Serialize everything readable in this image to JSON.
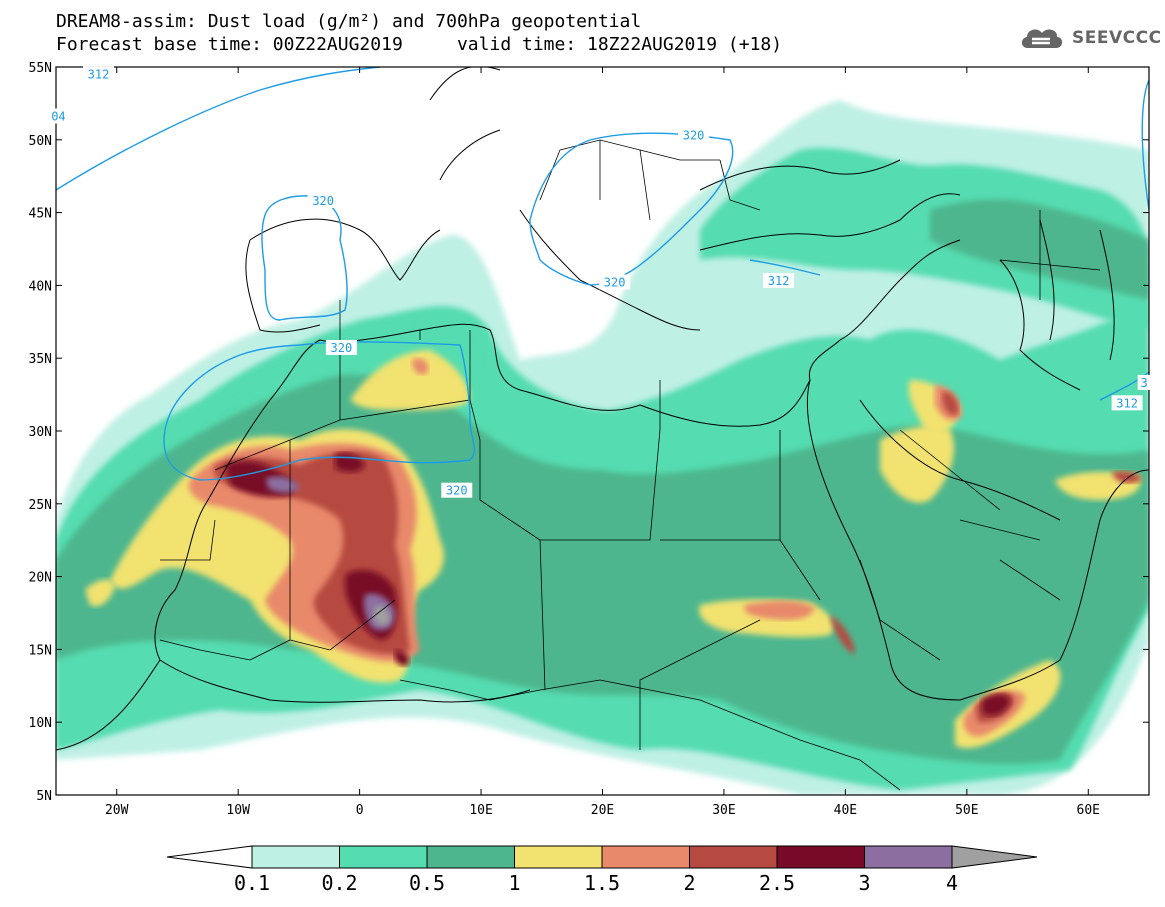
{
  "title_line1": "DREAM8-assim: Dust load (g/m²) and 700hPa geopotential",
  "title_line2": "Forecast base time: 00Z22AUG2019     valid time: 18Z22AUG2019 (+18)",
  "logo_text": "SEEVCCC",
  "map": {
    "lon_range": [
      -25,
      65
    ],
    "lat_range": [
      5,
      55
    ],
    "lon_ticks": [
      {
        "value": -20,
        "label": "20W"
      },
      {
        "value": -10,
        "label": "10W"
      },
      {
        "value": 0,
        "label": "0"
      },
      {
        "value": 10,
        "label": "10E"
      },
      {
        "value": 20,
        "label": "20E"
      },
      {
        "value": 30,
        "label": "30E"
      },
      {
        "value": 40,
        "label": "40E"
      },
      {
        "value": 50,
        "label": "50E"
      },
      {
        "value": 60,
        "label": "60E"
      }
    ],
    "lat_ticks": [
      {
        "value": 55,
        "label": "55N"
      },
      {
        "value": 50,
        "label": "50N"
      },
      {
        "value": 45,
        "label": "45N"
      },
      {
        "value": 40,
        "label": "40N"
      },
      {
        "value": 35,
        "label": "35N"
      },
      {
        "value": 30,
        "label": "30N"
      },
      {
        "value": 25,
        "label": "25N"
      },
      {
        "value": 20,
        "label": "20N"
      },
      {
        "value": 15,
        "label": "15N"
      },
      {
        "value": 10,
        "label": "10N"
      },
      {
        "value": 5,
        "label": "5N"
      }
    ],
    "contour_labels": [
      {
        "text": "312",
        "lon": -21.5,
        "lat": 54.5
      },
      {
        "text": "320",
        "lon": -3,
        "lat": 45.8
      },
      {
        "text": "320",
        "lon": 27.5,
        "lat": 50.3
      },
      {
        "text": "320",
        "lon": 21,
        "lat": 40.2
      },
      {
        "text": "312",
        "lon": 34.5,
        "lat": 40.3
      },
      {
        "text": "320",
        "lon": -1.5,
        "lat": 35.7
      },
      {
        "text": "320",
        "lon": 8,
        "lat": 25.9
      },
      {
        "text": "312",
        "lon": 63.2,
        "lat": 31.9
      },
      {
        "text": "04",
        "lon": -24.8,
        "lat": 51.6
      },
      {
        "text": "3",
        "lon": 64.6,
        "lat": 33.3
      }
    ]
  },
  "colorbar": {
    "levels": [
      "0.1",
      "0.2",
      "0.5",
      "1",
      "1.5",
      "2",
      "2.5",
      "3",
      "4"
    ],
    "colors": [
      "#ffffff",
      "#bff0e4",
      "#55dcb0",
      "#4db68e",
      "#f2e270",
      "#e8896a",
      "#b64a40",
      "#780a28",
      "#8c6ea0",
      "#a0a0a0"
    ]
  },
  "dust_colors": {
    "c1": "#bff0e4",
    "c2": "#55dcb0",
    "c3": "#4db68e",
    "c4": "#f2e270",
    "c5": "#e8896a",
    "c6": "#b64a40",
    "c7": "#780a28",
    "c8": "#8c6ea0",
    "c9": "#a0a0a0"
  },
  "contour_color": "#1e9be6"
}
